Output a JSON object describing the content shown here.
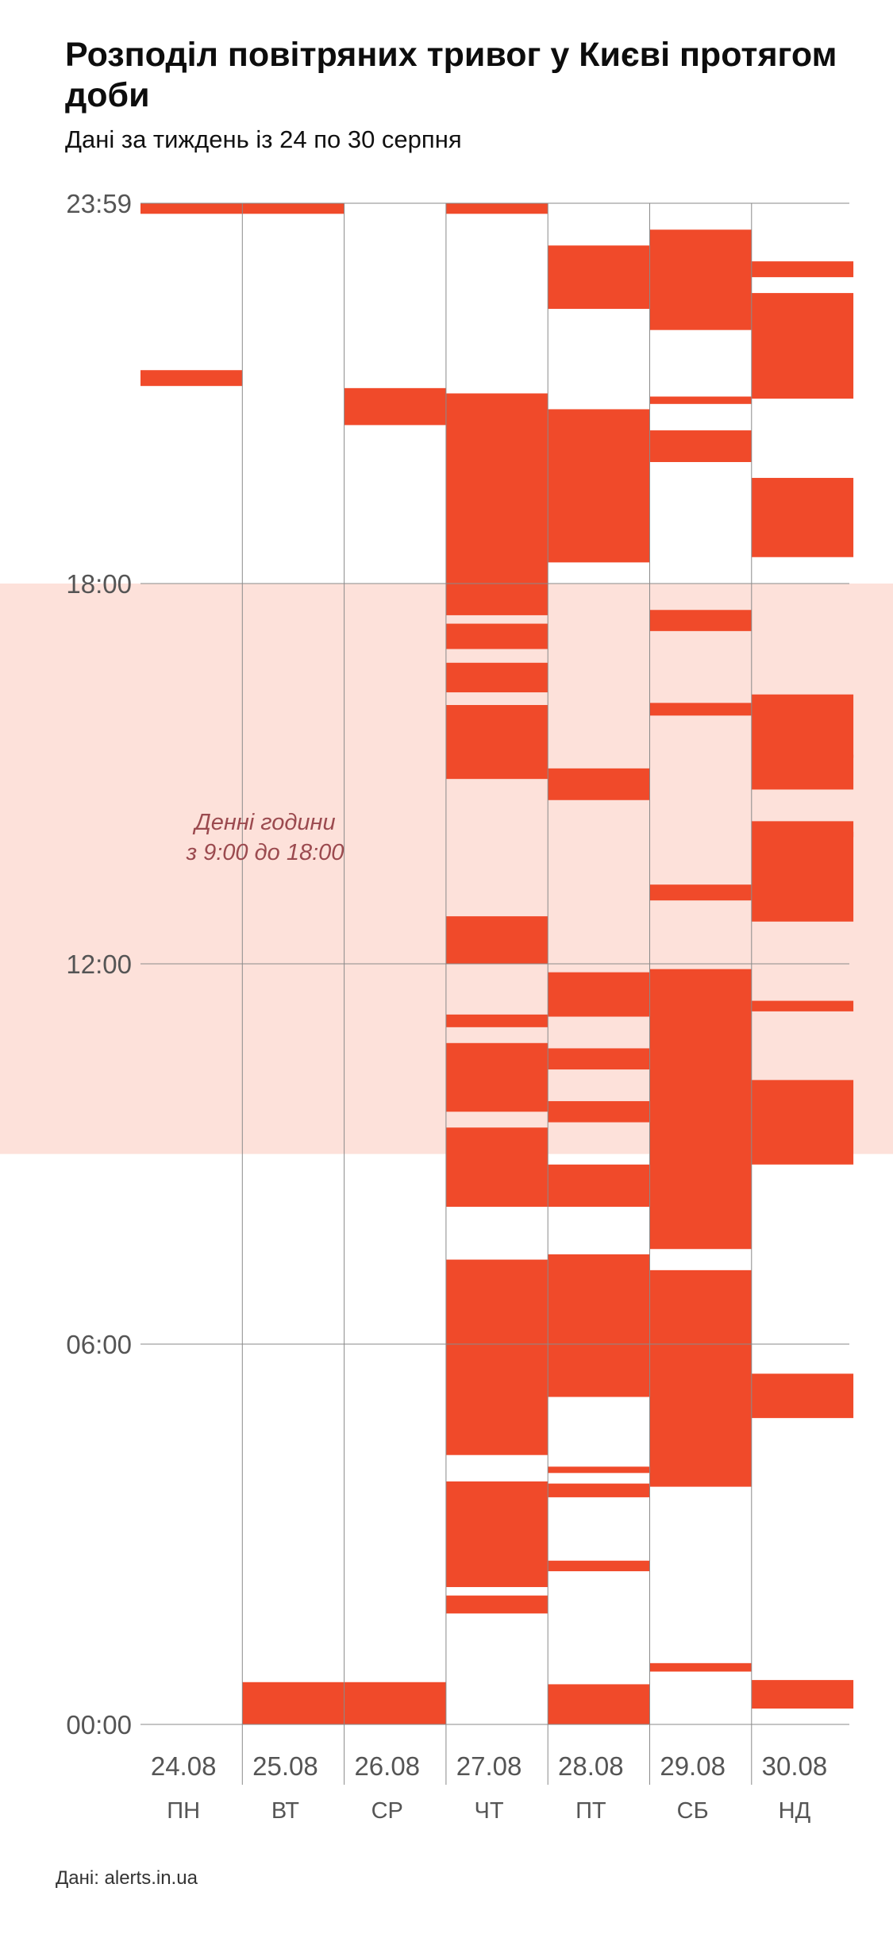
{
  "header": {
    "title": "Розподіл повітряних тривог у Києві протягом доби",
    "subtitle": "Дані за тиждень із 24 по 30 серпня"
  },
  "footer": {
    "source": "Дані: alerts.in.ua"
  },
  "colors": {
    "alert": "#f04a2a",
    "daytime_band": "#fde1da",
    "grid": "#8a8a8a",
    "annotation": "#9b4a4f"
  },
  "chart_data": {
    "type": "timeline",
    "y_axis": {
      "range": [
        "00:00",
        "23:59"
      ],
      "tick_labels": [
        "00:00",
        "06:00",
        "12:00",
        "18:00",
        "23:59"
      ],
      "tick_hours": [
        0,
        6,
        12,
        18,
        24
      ]
    },
    "band": {
      "label": [
        "Денні години",
        "з 9:00 до 18:00"
      ],
      "from": "09:00",
      "to": "18:00"
    },
    "days": [
      {
        "date": "24.08",
        "weekday": "ПН",
        "alerts": [
          [
            "23:50",
            "23:59"
          ],
          [
            "21:07",
            "21:22"
          ]
        ]
      },
      {
        "date": "25.08",
        "weekday": "ВТ",
        "alerts": [
          [
            "23:50",
            "23:59"
          ],
          [
            "00:00",
            "00:40"
          ]
        ]
      },
      {
        "date": "26.08",
        "weekday": "СР",
        "alerts": [
          [
            "20:30",
            "21:05"
          ],
          [
            "00:00",
            "00:40"
          ]
        ]
      },
      {
        "date": "27.08",
        "weekday": "ЧТ",
        "alerts": [
          [
            "23:50",
            "23:59"
          ],
          [
            "20:35",
            "21:00"
          ],
          [
            "17:30",
            "20:45"
          ],
          [
            "16:58",
            "17:22"
          ],
          [
            "16:17",
            "16:45"
          ],
          [
            "14:55",
            "16:05"
          ],
          [
            "12:00",
            "12:45"
          ],
          [
            "11:00",
            "11:12"
          ],
          [
            "09:40",
            "10:45"
          ],
          [
            "08:10",
            "09:25"
          ],
          [
            "04:15",
            "07:20"
          ],
          [
            "02:10",
            "03:50"
          ],
          [
            "01:45",
            "02:02"
          ]
        ]
      },
      {
        "date": "28.08",
        "weekday": "ПТ",
        "alerts": [
          [
            "22:20",
            "23:20"
          ],
          [
            "18:20",
            "20:45"
          ],
          [
            "14:35",
            "15:05"
          ],
          [
            "11:10",
            "11:52"
          ],
          [
            "10:20",
            "10:40"
          ],
          [
            "09:30",
            "09:50"
          ],
          [
            "08:10",
            "08:50"
          ],
          [
            "05:10",
            "07:25"
          ],
          [
            "03:58",
            "04:04"
          ],
          [
            "03:35",
            "03:48"
          ],
          [
            "02:25",
            "02:35"
          ],
          [
            "00:00",
            "00:38"
          ]
        ]
      },
      {
        "date": "29.08",
        "weekday": "СБ",
        "alerts": [
          [
            "23:15",
            "23:35"
          ],
          [
            "22:00",
            "23:22"
          ],
          [
            "20:50",
            "20:57"
          ],
          [
            "19:55",
            "20:25"
          ],
          [
            "17:15",
            "17:35"
          ],
          [
            "15:55",
            "16:07"
          ],
          [
            "13:00",
            "13:15"
          ],
          [
            "07:30",
            "11:55"
          ],
          [
            "03:45",
            "07:10"
          ],
          [
            "00:50",
            "00:58"
          ]
        ]
      },
      {
        "date": "30.08",
        "weekday": "НД",
        "alerts": [
          [
            "22:50",
            "23:05"
          ],
          [
            "20:55",
            "22:35"
          ],
          [
            "18:25",
            "19:40"
          ],
          [
            "15:15",
            "16:15"
          ],
          [
            "14:45",
            "15:18"
          ],
          [
            "14:00",
            "14:15"
          ],
          [
            "12:40",
            "14:05"
          ],
          [
            "11:15",
            "11:25"
          ],
          [
            "08:50",
            "10:10"
          ],
          [
            "04:50",
            "05:32"
          ],
          [
            "00:15",
            "00:42"
          ]
        ]
      }
    ]
  }
}
